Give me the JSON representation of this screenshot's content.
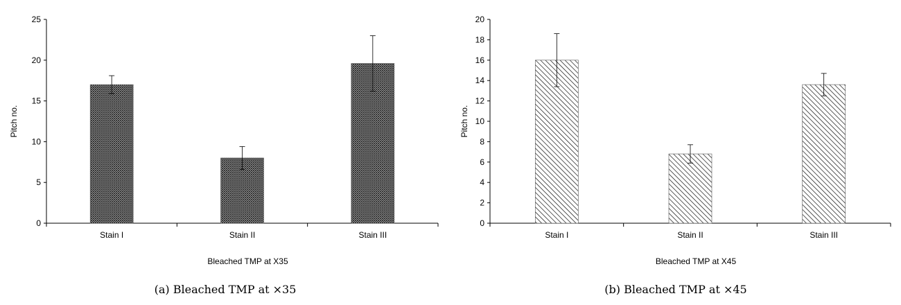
{
  "chart_data": [
    {
      "type": "bar",
      "categories": [
        "Stain I",
        "Stain II",
        "Stain III"
      ],
      "values": [
        17,
        8,
        19.6
      ],
      "errors": [
        1.1,
        1.4,
        3.4
      ],
      "xlabel": "Bleached TMP at X35",
      "ylabel": "Pitch no.",
      "ylim": [
        0,
        25
      ],
      "yticks": [
        0,
        5,
        10,
        15,
        20,
        25
      ],
      "pattern": "crosshatch",
      "grid": false,
      "caption": "(a) Bleached TMP at ×35"
    },
    {
      "type": "bar",
      "categories": [
        "Stain I",
        "Stain II",
        "Stain III"
      ],
      "values": [
        16,
        6.8,
        13.6
      ],
      "errors": [
        2.6,
        0.9,
        1.1
      ],
      "xlabel": "Bleached TMP at X45",
      "ylabel": "Pitch no.",
      "ylim": [
        0,
        20
      ],
      "yticks": [
        0,
        2,
        4,
        6,
        8,
        10,
        12,
        14,
        16,
        18,
        20
      ],
      "pattern": "diagonal",
      "grid": false,
      "caption": "(b) Bleached TMP at ×45"
    }
  ]
}
